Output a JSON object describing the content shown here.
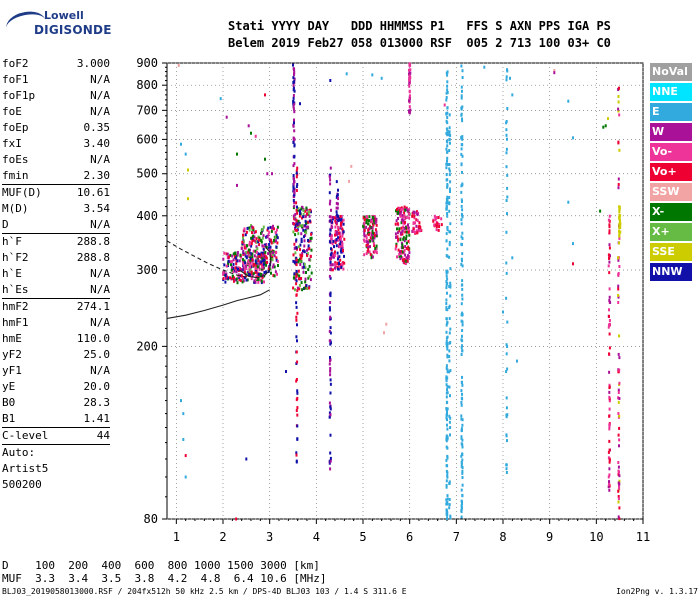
{
  "logo": {
    "line1": "Lowell",
    "line2": "DIGISONDE"
  },
  "header": {
    "labels": "Stati YYYY DAY   DDD HHMMSS P1   FFS S AXN PPS IGA PS",
    "values": "Belem 2019 Feb27 058 013000 RSF  005 2 713 100 03+ C0"
  },
  "params": [
    {
      "name": "foF2",
      "value": "3.000",
      "sep": false
    },
    {
      "name": "foF1",
      "value": "N/A",
      "sep": false
    },
    {
      "name": "foF1p",
      "value": "N/A",
      "sep": false
    },
    {
      "name": "foE",
      "value": "N/A",
      "sep": false
    },
    {
      "name": "foEp",
      "value": "0.35",
      "sep": false
    },
    {
      "name": "fxI",
      "value": "3.40",
      "sep": false
    },
    {
      "name": "foEs",
      "value": "N/A",
      "sep": false
    },
    {
      "name": "fmin",
      "value": "2.30",
      "sep": false
    },
    {
      "name": "MUF(D)",
      "value": "10.61",
      "sep": true
    },
    {
      "name": "M(D)",
      "value": "3.54",
      "sep": false
    },
    {
      "name": "D",
      "value": "N/A",
      "sep": false
    },
    {
      "name": "h`F",
      "value": "288.8",
      "sep": true
    },
    {
      "name": "h`F2",
      "value": "288.8",
      "sep": false
    },
    {
      "name": "h`E",
      "value": "N/A",
      "sep": false
    },
    {
      "name": "h`Es",
      "value": "N/A",
      "sep": false
    },
    {
      "name": "hmF2",
      "value": "274.1",
      "sep": true
    },
    {
      "name": "hmF1",
      "value": "N/A",
      "sep": false
    },
    {
      "name": "hmE",
      "value": "110.0",
      "sep": false
    },
    {
      "name": "yF2",
      "value": "25.0",
      "sep": false
    },
    {
      "name": "yF1",
      "value": "N/A",
      "sep": false
    },
    {
      "name": "yE",
      "value": "20.0",
      "sep": false
    },
    {
      "name": "B0",
      "value": "28.3",
      "sep": false
    },
    {
      "name": "B1",
      "value": "1.41",
      "sep": false
    },
    {
      "name": "C-level",
      "value": "44",
      "sep": true
    },
    {
      "name": "Auto:",
      "value": "",
      "sep": true
    },
    {
      "name": "Artist5",
      "value": "",
      "sep": false
    },
    {
      "name": "500200",
      "value": "",
      "sep": false
    }
  ],
  "legend": [
    {
      "label": "NoVal",
      "color": "#a0a0a0"
    },
    {
      "label": "NNE",
      "color": "#00e5ff"
    },
    {
      "label": "E",
      "color": "#33aadd"
    },
    {
      "label": "W",
      "color": "#aa1199"
    },
    {
      "label": "Vo-",
      "color": "#ee3399"
    },
    {
      "label": "Vo+",
      "color": "#ee0033"
    },
    {
      "label": "SSW",
      "color": "#f2a3a3"
    },
    {
      "label": "X-",
      "color": "#007700"
    },
    {
      "label": "X+",
      "color": "#66bb44"
    },
    {
      "label": "SSE",
      "color": "#cccc00"
    },
    {
      "label": "NNW",
      "color": "#1111aa"
    }
  ],
  "footer": {
    "d_line": "D    100  200  400  600  800 1000 1500 3000 [km]",
    "muf_line": "MUF  3.3  3.4  3.5  3.8  4.2  4.8  6.4 10.6 [MHz]",
    "file_line": "BLJ03_2019058013000.RSF / 204fx512h 50 kHz 2.5 km / DPS-4D BLJ03 103 / 1.4 S 311.6 E",
    "version": "Ion2Png v. 1.3.17"
  },
  "chart_data": {
    "type": "scatter",
    "xlim": [
      0.8,
      11
    ],
    "ylim": [
      80,
      900
    ],
    "x_ticks": [
      1,
      2,
      3,
      4,
      5,
      6,
      7,
      8,
      9,
      10,
      11
    ],
    "y_ticks": [
      80,
      200,
      300,
      400,
      500,
      600,
      700,
      800,
      900
    ],
    "grid": true,
    "colors": {
      "E": "#33aadd",
      "W": "#aa1199",
      "Vo-": "#ee3399",
      "Vo+": "#ee0033",
      "SSW": "#f2a3a3",
      "X-": "#007700",
      "X+": "#66bb44",
      "SSE": "#cccc00",
      "NNW": "#1111aa"
    },
    "clusters": [
      {
        "xr": [
          2.0,
          2.9
        ],
        "yr": [
          280,
          330
        ],
        "n": 220,
        "mix": [
          "Vo+",
          "W",
          "Vo-",
          "X-",
          "NNW"
        ]
      },
      {
        "xr": [
          2.4,
          3.2
        ],
        "yr": [
          290,
          380
        ],
        "n": 220,
        "mix": [
          "Vo+",
          "W",
          "Vo-",
          "X-",
          "X+",
          "NNW"
        ]
      },
      {
        "xr": [
          3.5,
          3.9
        ],
        "yr": [
          270,
          420
        ],
        "n": 180,
        "mix": [
          "Vo+",
          "W",
          "NNW",
          "X-",
          "X+"
        ]
      },
      {
        "xr": [
          4.3,
          4.6
        ],
        "yr": [
          300,
          400
        ],
        "n": 140,
        "mix": [
          "Vo+",
          "W",
          "NNW",
          "Vo-"
        ]
      },
      {
        "xr": [
          5.0,
          5.3
        ],
        "yr": [
          320,
          400
        ],
        "n": 120,
        "mix": [
          "Vo+",
          "W",
          "Vo-",
          "X-"
        ]
      },
      {
        "xr": [
          5.7,
          6.0
        ],
        "yr": [
          310,
          420
        ],
        "n": 140,
        "mix": [
          "Vo+",
          "W",
          "Vo-",
          "X-"
        ]
      },
      {
        "xr": [
          6.05,
          6.25
        ],
        "yr": [
          360,
          410
        ],
        "n": 40,
        "mix": [
          "Vo+",
          "W",
          "Vo-"
        ]
      },
      {
        "xr": [
          6.5,
          6.7
        ],
        "yr": [
          370,
          400
        ],
        "n": 20,
        "mix": [
          "Vo+",
          "Vo-"
        ]
      }
    ],
    "columns": [
      {
        "x": 3.52,
        "yr": [
          420,
          900
        ],
        "n": 70,
        "mix": [
          "NNW",
          "W"
        ]
      },
      {
        "x": 3.58,
        "yr": [
          100,
          520
        ],
        "n": 60,
        "mix": [
          "NNW",
          "Vo+"
        ]
      },
      {
        "x": 4.3,
        "yr": [
          100,
          540
        ],
        "n": 70,
        "mix": [
          "NNW",
          "W"
        ]
      },
      {
        "x": 4.45,
        "yr": [
          380,
          480
        ],
        "n": 20,
        "mix": [
          "NNW",
          "W"
        ]
      },
      {
        "x": 6.0,
        "yr": [
          690,
          900
        ],
        "n": 40,
        "mix": [
          "W",
          "Vo-"
        ]
      },
      {
        "x": 6.8,
        "yr": [
          80,
          860
        ],
        "n": 160,
        "mix": [
          "E"
        ]
      },
      {
        "x": 6.86,
        "yr": [
          80,
          700
        ],
        "n": 60,
        "mix": [
          "E"
        ]
      },
      {
        "x": 7.12,
        "yr": [
          80,
          890
        ],
        "n": 120,
        "mix": [
          "E"
        ]
      },
      {
        "x": 8.08,
        "yr": [
          100,
          890
        ],
        "n": 40,
        "mix": [
          "E"
        ]
      },
      {
        "x": 10.28,
        "yr": [
          90,
          400
        ],
        "n": 70,
        "mix": [
          "Vo+",
          "W",
          "Vo-"
        ]
      },
      {
        "x": 10.48,
        "yr": [
          80,
          820
        ],
        "n": 70,
        "mix": [
          "Vo-",
          "W",
          "Vo+",
          "SSE"
        ]
      },
      {
        "x": 10.5,
        "yr": [
          340,
          420
        ],
        "n": 30,
        "mix": [
          "SSE"
        ]
      }
    ],
    "scatter": [
      {
        "x": 1.05,
        "y": 888,
        "c": "SSW"
      },
      {
        "x": 1.1,
        "y": 585,
        "c": "E"
      },
      {
        "x": 1.2,
        "y": 555,
        "c": "E"
      },
      {
        "x": 1.25,
        "y": 510,
        "c": "SSE"
      },
      {
        "x": 1.25,
        "y": 438,
        "c": "SSE"
      },
      {
        "x": 1.1,
        "y": 150,
        "c": "E"
      },
      {
        "x": 1.15,
        "y": 140,
        "c": "E"
      },
      {
        "x": 1.15,
        "y": 122,
        "c": "E"
      },
      {
        "x": 1.2,
        "y": 112,
        "c": "Vo+"
      },
      {
        "x": 1.2,
        "y": 100,
        "c": "E"
      },
      {
        "x": 1.95,
        "y": 745,
        "c": "E"
      },
      {
        "x": 2.08,
        "y": 675,
        "c": "W"
      },
      {
        "x": 2.3,
        "y": 555,
        "c": "X-"
      },
      {
        "x": 2.3,
        "y": 470,
        "c": "W"
      },
      {
        "x": 2.5,
        "y": 110,
        "c": "NNW"
      },
      {
        "x": 2.28,
        "y": 80,
        "c": "Vo+"
      },
      {
        "x": 2.55,
        "y": 645,
        "c": "W"
      },
      {
        "x": 2.6,
        "y": 620,
        "c": "X-"
      },
      {
        "x": 2.7,
        "y": 610,
        "c": "Vo-"
      },
      {
        "x": 2.9,
        "y": 760,
        "c": "Vo+"
      },
      {
        "x": 2.95,
        "y": 500,
        "c": "W"
      },
      {
        "x": 3.05,
        "y": 500,
        "c": "W"
      },
      {
        "x": 2.9,
        "y": 540,
        "c": "X-"
      },
      {
        "x": 3.35,
        "y": 175,
        "c": "NNW"
      },
      {
        "x": 3.5,
        "y": 890,
        "c": "NNW"
      },
      {
        "x": 3.65,
        "y": 725,
        "c": "NNW"
      },
      {
        "x": 4.3,
        "y": 820,
        "c": "NNW"
      },
      {
        "x": 4.65,
        "y": 850,
        "c": "E"
      },
      {
        "x": 4.7,
        "y": 480,
        "c": "SSW"
      },
      {
        "x": 4.75,
        "y": 520,
        "c": "SSW"
      },
      {
        "x": 5.2,
        "y": 845,
        "c": "E"
      },
      {
        "x": 5.4,
        "y": 830,
        "c": "E"
      },
      {
        "x": 5.45,
        "y": 215,
        "c": "SSW"
      },
      {
        "x": 5.5,
        "y": 225,
        "c": "SSW"
      },
      {
        "x": 6.75,
        "y": 720,
        "c": "Vo-"
      },
      {
        "x": 7.6,
        "y": 880,
        "c": "E"
      },
      {
        "x": 8.15,
        "y": 830,
        "c": "E"
      },
      {
        "x": 8.2,
        "y": 760,
        "c": "E"
      },
      {
        "x": 8.2,
        "y": 320,
        "c": "E"
      },
      {
        "x": 8.3,
        "y": 185,
        "c": "E"
      },
      {
        "x": 8.0,
        "y": 240,
        "c": "E"
      },
      {
        "x": 9.1,
        "y": 865,
        "c": "SSW"
      },
      {
        "x": 9.1,
        "y": 855,
        "c": "W"
      },
      {
        "x": 9.4,
        "y": 735,
        "c": "E"
      },
      {
        "x": 9.5,
        "y": 605,
        "c": "E"
      },
      {
        "x": 9.4,
        "y": 430,
        "c": "E"
      },
      {
        "x": 9.5,
        "y": 345,
        "c": "E"
      },
      {
        "x": 9.5,
        "y": 310,
        "c": "Vo+"
      },
      {
        "x": 10.15,
        "y": 640,
        "c": "X-"
      },
      {
        "x": 10.2,
        "y": 645,
        "c": "X-"
      },
      {
        "x": 10.25,
        "y": 670,
        "c": "SSE"
      },
      {
        "x": 10.08,
        "y": 410,
        "c": "X-"
      }
    ],
    "curves": [
      {
        "style": "solid",
        "points": [
          [
            0.8,
            232
          ],
          [
            1.2,
            236
          ],
          [
            1.6,
            242
          ],
          [
            2.0,
            249
          ],
          [
            2.3,
            255
          ],
          [
            2.5,
            258
          ],
          [
            2.8,
            263
          ],
          [
            3.0,
            270
          ]
        ]
      },
      {
        "style": "solid",
        "points": [
          [
            2.35,
            300
          ],
          [
            2.55,
            290
          ],
          [
            2.75,
            288
          ],
          [
            2.9,
            292
          ],
          [
            3.0,
            300
          ],
          [
            3.02,
            315
          ],
          [
            3.0,
            330
          ],
          [
            2.9,
            340
          ]
        ]
      },
      {
        "style": "dashed",
        "points": [
          [
            0.8,
            350
          ],
          [
            1.1,
            335
          ],
          [
            1.4,
            322
          ],
          [
            1.7,
            310
          ],
          [
            2.0,
            300
          ],
          [
            2.3,
            292
          ],
          [
            2.55,
            288
          ]
        ]
      }
    ]
  }
}
